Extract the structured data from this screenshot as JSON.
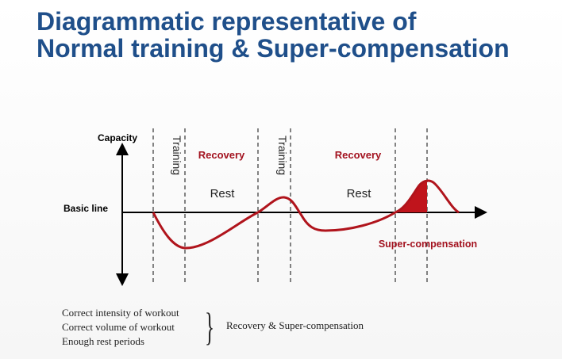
{
  "title": {
    "line1": "Diagrammatic representative of",
    "line2": "Normal training & Super-compensation"
  },
  "diagram": {
    "y_axis_label": "Capacity",
    "baseline_label": "Basic line",
    "phase1_training": "Training",
    "phase1_recovery": "Recovery",
    "phase1_rest": "Rest",
    "phase2_training": "Training",
    "phase2_recovery": "Recovery",
    "phase2_rest": "Rest",
    "supercompensation_label": "Super-compensation",
    "colors": {
      "curve": "#b0141c",
      "accent_text": "#a3121f",
      "axis": "#000000",
      "title": "#1f4f8a"
    }
  },
  "notes": {
    "items": [
      "Correct intensity of workout",
      "Correct volume of workout",
      "Enough rest periods"
    ],
    "brace": "}",
    "outcome": "Recovery & Super-compensation"
  }
}
